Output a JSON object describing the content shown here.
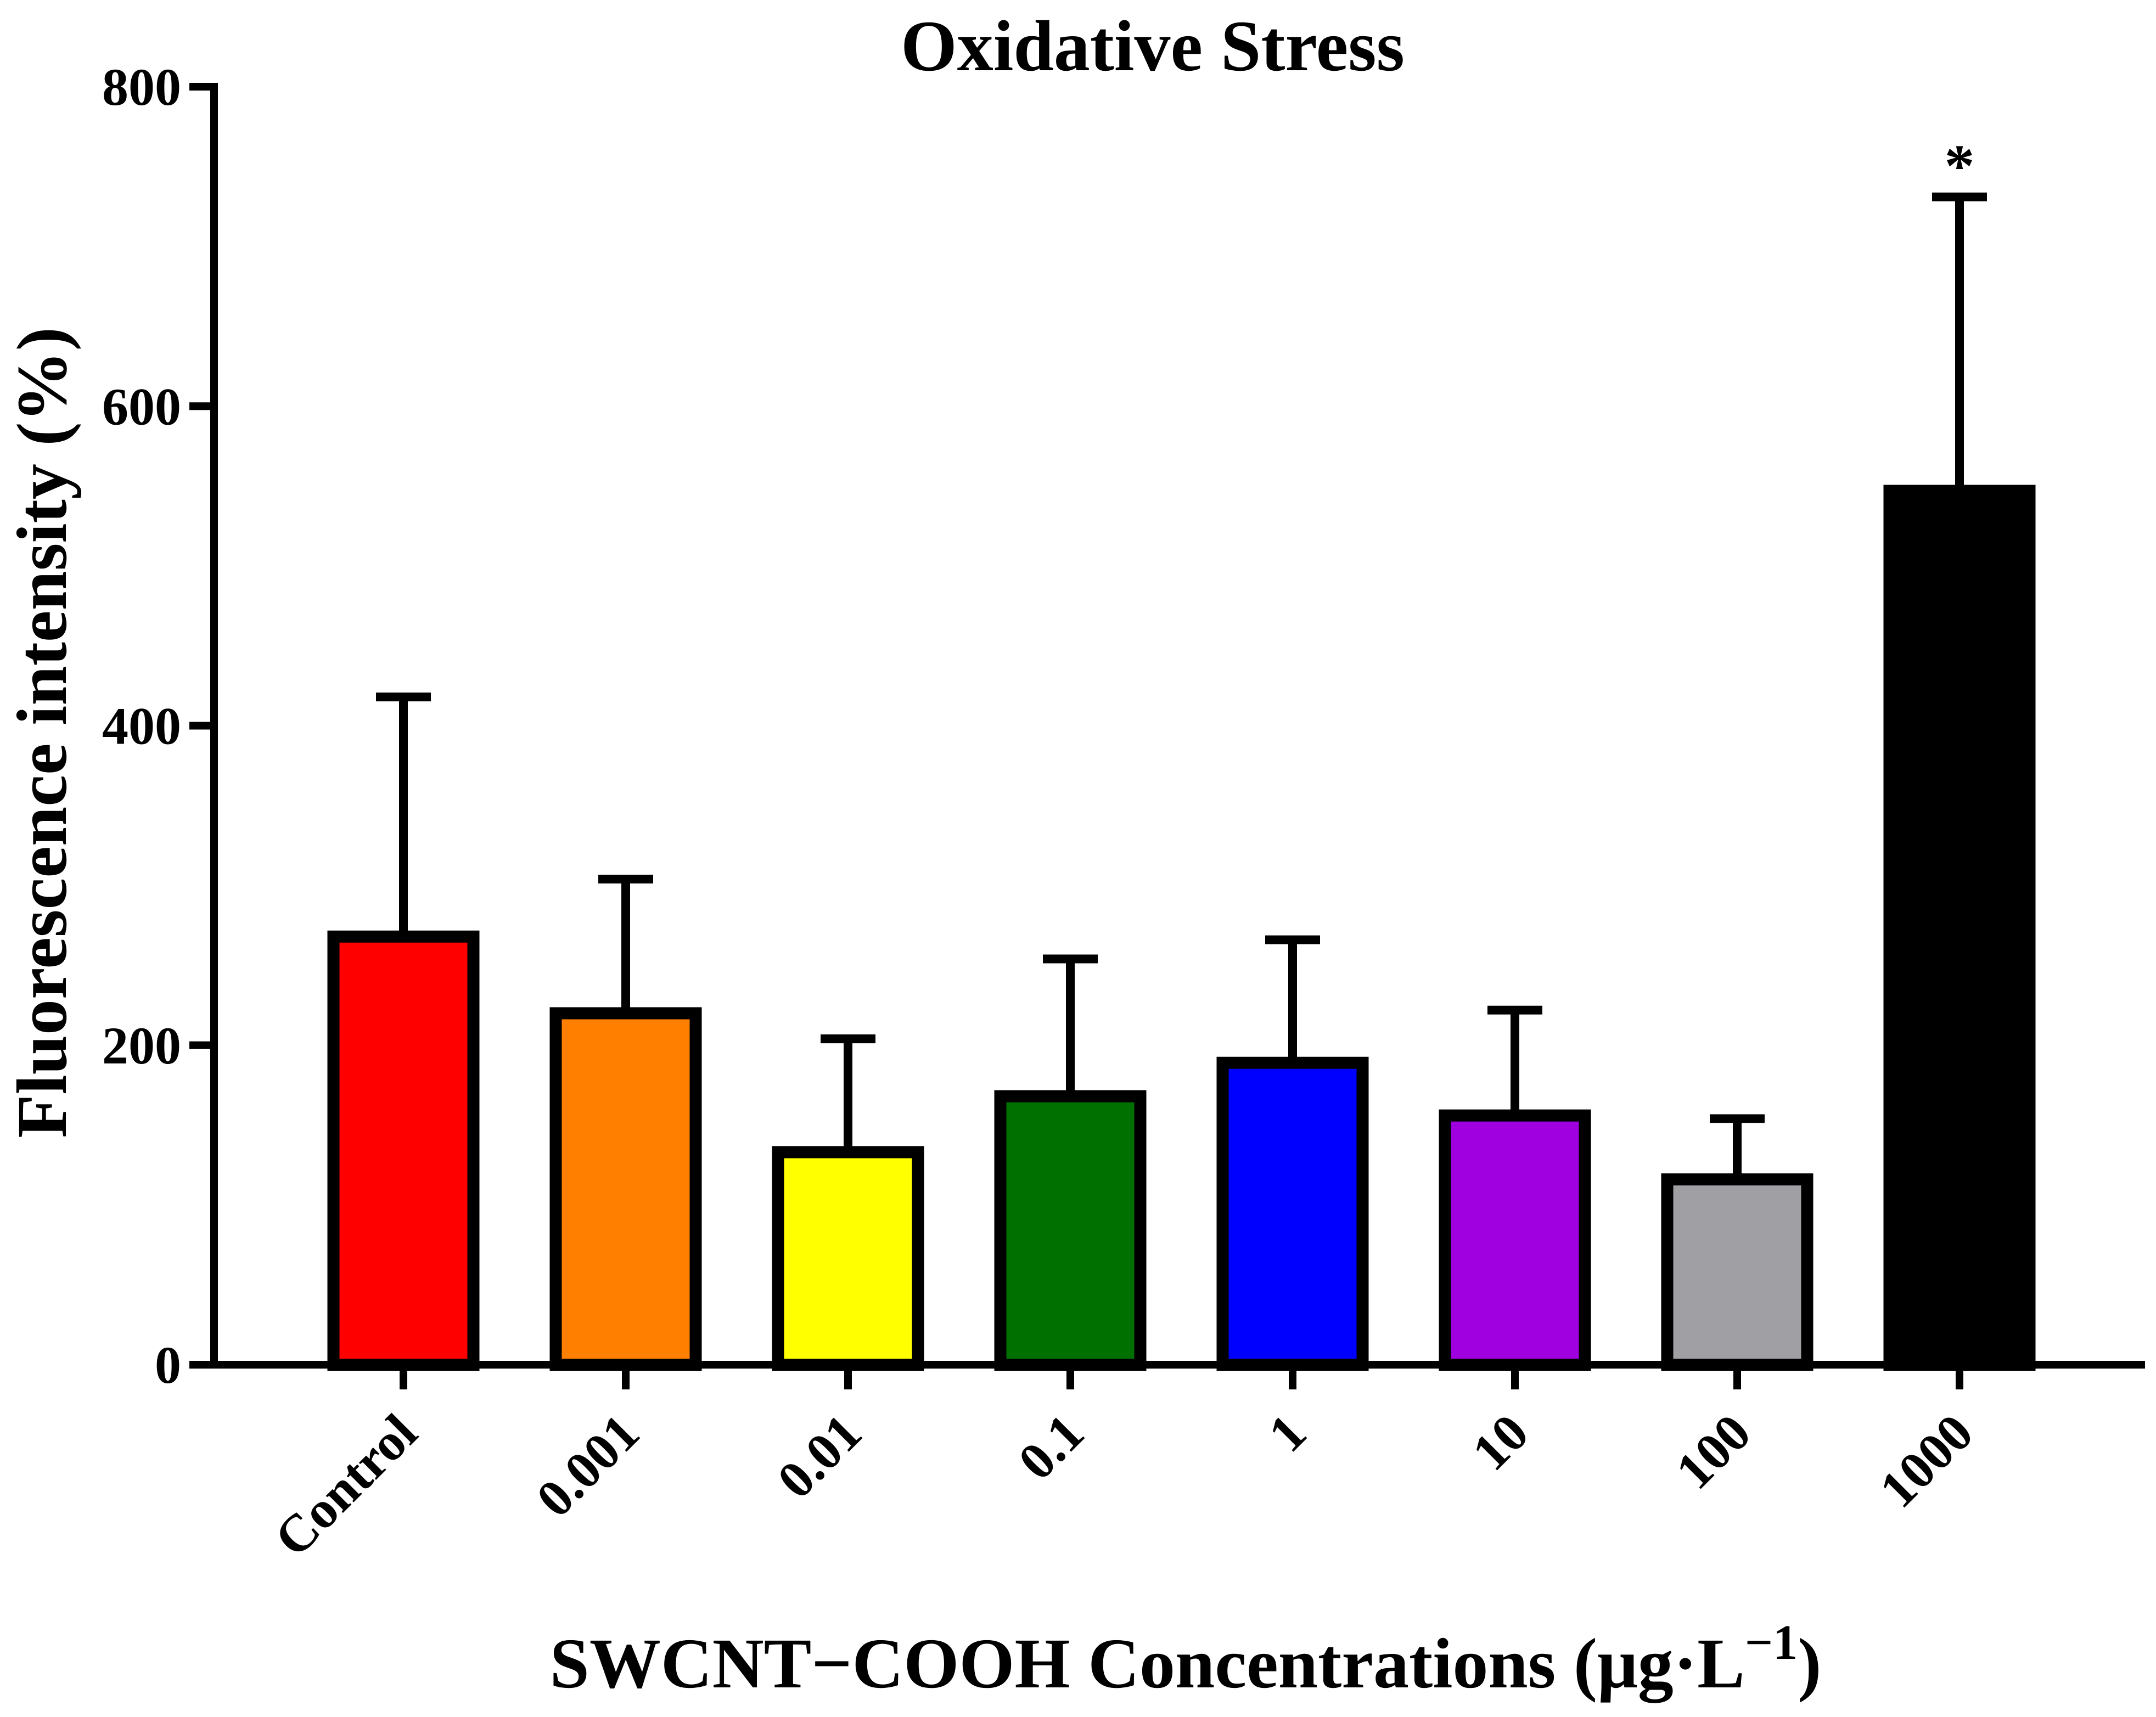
{
  "chart_data": {
    "type": "bar",
    "title": "Oxidative Stress",
    "xlabel": {
      "main": "SWCNT−COOH Concentrations (μg·L",
      "superscript": "−1",
      "close": ")"
    },
    "ylabel": "Fluorescence intensity (%)",
    "ylim": [
      0,
      800
    ],
    "yticks": [
      0,
      200,
      400,
      600,
      800
    ],
    "grid": false,
    "categories": [
      "Control",
      "0.001",
      "0.01",
      "0.1",
      "1",
      "10",
      "100",
      "1000"
    ],
    "values": [
      268,
      220,
      133,
      168,
      189,
      156,
      116,
      547
    ],
    "error_upper": [
      150,
      84,
      71,
      86,
      77,
      66,
      38,
      184
    ],
    "colors": [
      "#ff0000",
      "#ff8000",
      "#ffff00",
      "#007000",
      "#0000ff",
      "#a000e0",
      "#a0a0a4",
      "#000000"
    ],
    "annotations": [
      {
        "category": "1000",
        "text": "*"
      }
    ]
  }
}
